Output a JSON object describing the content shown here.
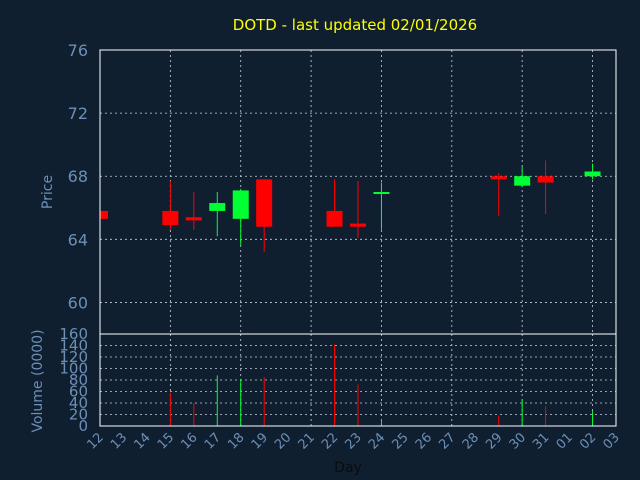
{
  "colors": {
    "background": "#0f1f30",
    "title": "#ffff00",
    "axis_text": "#6d8fb6",
    "grid": "#c8d0da",
    "up": "#00ff33",
    "down": "#ff0000",
    "frame": "#ffffff"
  },
  "chart_data": [
    {
      "type": "candlestick",
      "title": "DOTD - last updated 02/01/2026",
      "ylabel": "Price",
      "ylim": [
        58,
        76
      ],
      "y_ticks": [
        60,
        64,
        68,
        72,
        76
      ],
      "grid": true,
      "x_ticks": [
        "12",
        "13",
        "14",
        "15",
        "16",
        "17",
        "18",
        "19",
        "20",
        "21",
        "22",
        "23",
        "24",
        "25",
        "26",
        "27",
        "28",
        "29",
        "30",
        "31",
        "01",
        "02",
        "03"
      ],
      "candles": [
        {
          "day": "12",
          "open": 65.8,
          "high": 65.8,
          "low": 65.2,
          "close": 65.3
        },
        {
          "day": "15",
          "open": 65.8,
          "high": 67.7,
          "low": 64.6,
          "close": 64.9
        },
        {
          "day": "16",
          "open": 65.4,
          "high": 67.0,
          "low": 64.6,
          "close": 65.2
        },
        {
          "day": "17",
          "open": 65.8,
          "high": 67.0,
          "low": 64.2,
          "close": 66.3
        },
        {
          "day": "18",
          "open": 65.3,
          "high": 67.2,
          "low": 63.6,
          "close": 67.1
        },
        {
          "day": "19",
          "open": 67.8,
          "high": 67.8,
          "low": 63.2,
          "close": 64.8
        },
        {
          "day": "22",
          "open": 65.8,
          "high": 67.8,
          "low": 64.8,
          "close": 64.8
        },
        {
          "day": "23",
          "open": 65.0,
          "high": 67.7,
          "low": 64.1,
          "close": 64.8
        },
        {
          "day": "24",
          "open": 66.9,
          "high": 67.6,
          "low": 64.6,
          "close": 67.0
        },
        {
          "day": "29",
          "open": 68.0,
          "high": 68.2,
          "low": 65.5,
          "close": 67.8
        },
        {
          "day": "30",
          "open": 67.4,
          "high": 68.6,
          "low": 67.3,
          "close": 68.0
        },
        {
          "day": "31",
          "open": 68.0,
          "high": 69.0,
          "low": 65.6,
          "close": 67.6
        },
        {
          "day": "02",
          "open": 68.0,
          "high": 68.8,
          "low": 67.8,
          "close": 68.3
        }
      ]
    },
    {
      "type": "bar",
      "ylabel": "Volume (0000)",
      "xlabel": "Day",
      "ylim": [
        0,
        160
      ],
      "y_ticks": [
        0,
        20,
        40,
        60,
        80,
        100,
        120,
        140,
        160
      ],
      "grid": true,
      "bars": [
        {
          "day": "15",
          "value": 58,
          "direction": "down"
        },
        {
          "day": "16",
          "value": 40,
          "direction": "down"
        },
        {
          "day": "17",
          "value": 88,
          "direction": "up"
        },
        {
          "day": "18",
          "value": 82,
          "direction": "up"
        },
        {
          "day": "19",
          "value": 85,
          "direction": "down"
        },
        {
          "day": "22",
          "value": 142,
          "direction": "down"
        },
        {
          "day": "23",
          "value": 72,
          "direction": "down"
        },
        {
          "day": "24",
          "value": 12,
          "direction": "up"
        },
        {
          "day": "29",
          "value": 18,
          "direction": "down"
        },
        {
          "day": "30",
          "value": 46,
          "direction": "up"
        },
        {
          "day": "31",
          "value": 34,
          "direction": "down"
        },
        {
          "day": "02",
          "value": 26,
          "direction": "up"
        }
      ]
    }
  ]
}
